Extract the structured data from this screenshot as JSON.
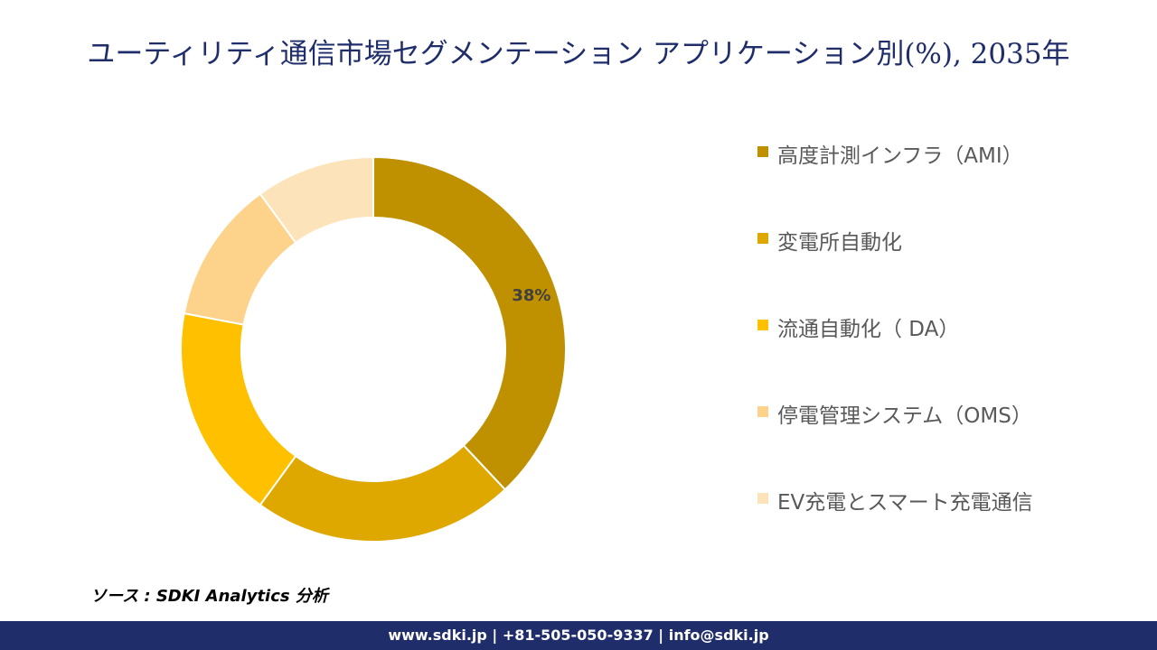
{
  "chart_data": {
    "type": "donut",
    "title": "ユーティリティ通信市場セグメンテーション アプリケーション別(%), 2035年",
    "categories": [
      "高度計測インフラ（AMI）",
      "変電所自動化",
      "流通自動化（ DA）",
      "停電管理システム（OMS）",
      "EV充電とスマート充電通信"
    ],
    "values": [
      38,
      22,
      18,
      12,
      10
    ],
    "value_labels": [
      "38%",
      null,
      null,
      null,
      null
    ],
    "colors": [
      "#BF9000",
      "#DFA800",
      "#FFC000",
      "#FDD38C",
      "#FDE3BA"
    ],
    "legend": "right"
  },
  "source": "ソース : SDKI Analytics 分析",
  "footer": "www.sdki.jp | +81-505-050-9337 | info@sdki.jp"
}
